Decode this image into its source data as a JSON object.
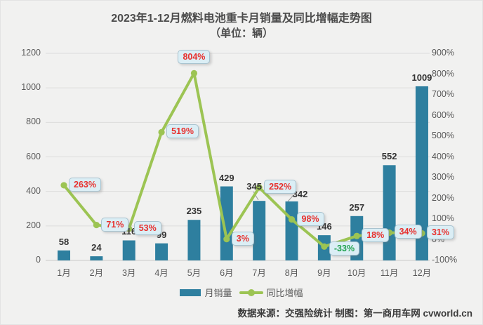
{
  "title": "2023年1-12月燃料电池重卡月销量及同比增幅走势图",
  "subtitle": "（单位：辆）",
  "footer": "数据来源：交强险统计 制图：第一商用车网 cvworld.cn",
  "legend": {
    "sales_label": "月销量",
    "yoy_label": "同比增幅"
  },
  "colors": {
    "bar": "#2E7F9F",
    "line": "#9CC453",
    "label_red": "#E8312E",
    "label_green": "#21A24E",
    "callout_bg": "#DBEEF5",
    "callout_border": "#A9C3CF",
    "axis_text": "#595959",
    "gridline": "#DCDCDC",
    "zero_line": "#C9C9C9",
    "background": "#F1F1F0"
  },
  "chart_data": {
    "type": "bar+line combo",
    "title": "2023年1-12月燃料电池重卡月销量及同比增幅走势图（单位：辆）",
    "categories": [
      "1月",
      "2月",
      "3月",
      "4月",
      "5月",
      "6月",
      "7月",
      "8月",
      "9月",
      "10月",
      "11月",
      "12月"
    ],
    "series": [
      {
        "name": "月销量",
        "type": "bar",
        "axis": "left",
        "values": [
          58,
          24,
          116,
          99,
          235,
          429,
          345,
          342,
          146,
          257,
          552,
          1009
        ]
      },
      {
        "name": "同比增幅",
        "type": "line",
        "axis": "right",
        "values_pct": [
          263,
          71,
          53,
          519,
          804,
          3,
          252,
          98,
          -33,
          18,
          34,
          31
        ],
        "point_labels": [
          "263%",
          "71%",
          "53%",
          "519%",
          "804%",
          "3%",
          "252%",
          "98%",
          "-33%",
          "18%",
          "34%",
          "31%"
        ],
        "label_placement": [
          "right",
          "right",
          "right",
          "right",
          "above",
          "right",
          "right",
          "right",
          "right",
          "right",
          "right",
          "right"
        ]
      }
    ],
    "left_axis": {
      "ticks": [
        1200,
        1000,
        800,
        600,
        400,
        200,
        0
      ],
      "min": 0,
      "max": 1200
    },
    "right_axis": {
      "ticks_pct": [
        900,
        800,
        700,
        600,
        500,
        400,
        300,
        200,
        100,
        0,
        -100
      ],
      "min_pct": -100,
      "max_pct": 900,
      "format": "percent"
    },
    "grid": "horizontal only",
    "legend_position": "bottom-center"
  }
}
